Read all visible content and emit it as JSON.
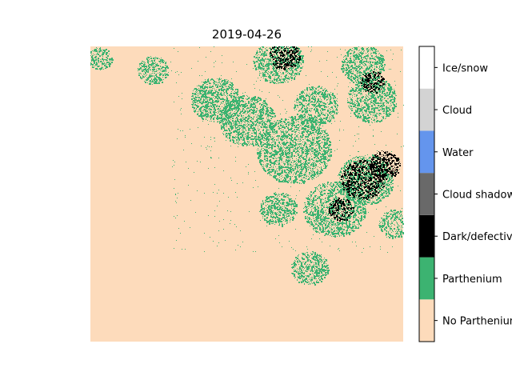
{
  "chart_data": {
    "type": "heatmap",
    "title": "2019-04-26",
    "xlabel": "",
    "ylabel": "",
    "axes_visible": false,
    "colorbar": {
      "position": "right",
      "classes": [
        {
          "label": "No Parthenium",
          "color": "#fddbbb"
        },
        {
          "label": "Parthenium",
          "color": "#3cb371"
        },
        {
          "label": "Dark/defective",
          "color": "#000000"
        },
        {
          "label": "Cloud shadow",
          "color": "#696969"
        },
        {
          "label": "Water",
          "color": "#6495ed"
        },
        {
          "label": "Cloud",
          "color": "#d3d3d3"
        },
        {
          "label": "Ice/snow",
          "color": "#ffffff"
        }
      ]
    },
    "dominant_class": "No Parthenium",
    "clusters": [
      {
        "class": "Parthenium",
        "cx": 0.9,
        "cy": 0.18,
        "r": 0.08
      },
      {
        "class": "Parthenium",
        "cx": 0.88,
        "cy": 0.45,
        "r": 0.09
      },
      {
        "class": "Parthenium",
        "cx": 0.78,
        "cy": 0.55,
        "r": 0.1
      },
      {
        "class": "Parthenium",
        "cx": 0.65,
        "cy": 0.35,
        "r": 0.12
      },
      {
        "class": "Parthenium",
        "cx": 0.5,
        "cy": 0.25,
        "r": 0.09
      },
      {
        "class": "Parthenium",
        "cx": 0.4,
        "cy": 0.18,
        "r": 0.08
      },
      {
        "class": "Parthenium",
        "cx": 0.6,
        "cy": 0.05,
        "r": 0.08
      },
      {
        "class": "Parthenium",
        "cx": 0.87,
        "cy": 0.06,
        "r": 0.07
      },
      {
        "class": "Parthenium",
        "cx": 0.6,
        "cy": 0.55,
        "r": 0.06
      },
      {
        "class": "Parthenium",
        "cx": 0.97,
        "cy": 0.6,
        "r": 0.05
      },
      {
        "class": "Parthenium",
        "cx": 0.7,
        "cy": 0.75,
        "r": 0.06
      },
      {
        "class": "Parthenium",
        "cx": 0.03,
        "cy": 0.04,
        "r": 0.04
      },
      {
        "class": "Parthenium",
        "cx": 0.2,
        "cy": 0.08,
        "r": 0.05
      },
      {
        "class": "Parthenium",
        "cx": 0.72,
        "cy": 0.2,
        "r": 0.07
      },
      {
        "class": "Dark/defective",
        "cx": 0.87,
        "cy": 0.45,
        "r": 0.07
      },
      {
        "class": "Dark/defective",
        "cx": 0.94,
        "cy": 0.4,
        "r": 0.05
      },
      {
        "class": "Dark/defective",
        "cx": 0.62,
        "cy": 0.03,
        "r": 0.05
      },
      {
        "class": "Dark/defective",
        "cx": 0.9,
        "cy": 0.12,
        "r": 0.04
      },
      {
        "class": "Dark/defective",
        "cx": 0.8,
        "cy": 0.55,
        "r": 0.04
      }
    ]
  }
}
